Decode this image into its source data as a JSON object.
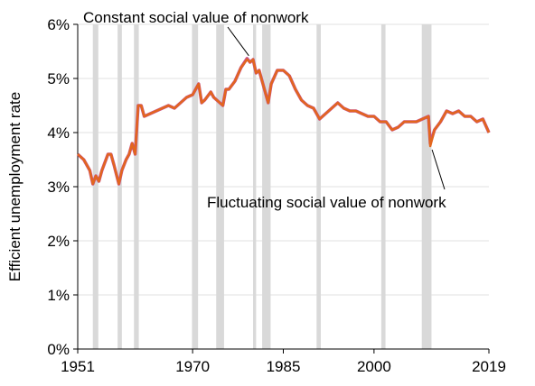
{
  "chart_data": {
    "type": "line",
    "y_label": "Efficient unemployment rate",
    "x": [
      1951,
      1952,
      1953,
      1953.5,
      1954,
      1954.5,
      1955,
      1956,
      1956.5,
      1957,
      1957.8,
      1958.3,
      1959,
      1959.5,
      1960,
      1960.5,
      1961,
      1961.5,
      1962,
      1963,
      1964,
      1965,
      1966,
      1967,
      1968,
      1969,
      1970,
      1970.5,
      1971,
      1971.5,
      1972,
      1973,
      1973.5,
      1974,
      1975,
      1975.5,
      1976,
      1977,
      1978,
      1979,
      1979.5,
      1980,
      1980.5,
      1981,
      1981.5,
      1982,
      1982.5,
      1983,
      1984,
      1985,
      1986,
      1987,
      1988,
      1989,
      1990,
      1991,
      1992,
      1993,
      1994,
      1995,
      1996,
      1997,
      1998,
      1999,
      2000,
      2001,
      2002,
      2003,
      2004,
      2005,
      2006,
      2007,
      2008,
      2009,
      2009.3,
      2010,
      2011,
      2012,
      2013,
      2014,
      2015,
      2016,
      2017,
      2018,
      2019
    ],
    "series": [
      {
        "name": "Constant social value of nonwork",
        "color": "#c8508a",
        "values": [
          3.6,
          3.5,
          3.3,
          3.05,
          3.2,
          3.1,
          3.3,
          3.6,
          3.6,
          3.4,
          3.05,
          3.3,
          3.5,
          3.6,
          3.8,
          3.6,
          4.5,
          4.5,
          4.3,
          4.35,
          4.4,
          4.45,
          4.5,
          4.45,
          4.55,
          4.65,
          4.7,
          4.8,
          4.9,
          4.55,
          4.6,
          4.75,
          4.65,
          4.6,
          4.5,
          4.8,
          4.8,
          4.95,
          5.2,
          5.37,
          5.3,
          5.35,
          5.1,
          5.15,
          4.95,
          4.75,
          4.55,
          4.9,
          5.15,
          5.15,
          5.05,
          4.8,
          4.6,
          4.5,
          4.45,
          4.25,
          4.35,
          4.45,
          4.55,
          4.45,
          4.4,
          4.4,
          4.35,
          4.3,
          4.3,
          4.2,
          4.2,
          4.05,
          4.1,
          4.2,
          4.2,
          4.2,
          4.25,
          4.3,
          3.8,
          4.05,
          4.2,
          4.4,
          4.35,
          4.4,
          4.3,
          4.3,
          4.2,
          4.25,
          4.0
        ]
      },
      {
        "name": "Fluctuating social value of nonwork",
        "color": "#e2661e",
        "values": [
          3.6,
          3.5,
          3.3,
          3.05,
          3.2,
          3.1,
          3.3,
          3.6,
          3.6,
          3.4,
          3.05,
          3.3,
          3.5,
          3.6,
          3.8,
          3.6,
          4.5,
          4.5,
          4.3,
          4.35,
          4.4,
          4.45,
          4.5,
          4.45,
          4.55,
          4.65,
          4.7,
          4.8,
          4.9,
          4.55,
          4.6,
          4.75,
          4.65,
          4.6,
          4.5,
          4.8,
          4.8,
          4.95,
          5.2,
          5.35,
          5.3,
          5.35,
          5.1,
          5.15,
          4.95,
          4.75,
          4.55,
          4.9,
          5.15,
          5.15,
          5.05,
          4.8,
          4.6,
          4.5,
          4.45,
          4.25,
          4.35,
          4.45,
          4.55,
          4.45,
          4.4,
          4.4,
          4.35,
          4.3,
          4.3,
          4.2,
          4.2,
          4.05,
          4.1,
          4.2,
          4.2,
          4.2,
          4.25,
          4.3,
          3.75,
          4.05,
          4.2,
          4.4,
          4.35,
          4.4,
          4.3,
          4.3,
          4.2,
          4.25,
          4.0
        ]
      }
    ],
    "recessions": [
      [
        1953.5,
        1954.4
      ],
      [
        1957.6,
        1958.3
      ],
      [
        1960.3,
        1961.1
      ],
      [
        1969.9,
        1970.9
      ],
      [
        1973.9,
        1975.2
      ],
      [
        1980.0,
        1980.5
      ],
      [
        1981.5,
        1982.9
      ],
      [
        1990.5,
        1991.2
      ],
      [
        2001.2,
        2001.9
      ],
      [
        2007.9,
        2009.5
      ]
    ],
    "recession_color": "#d9d9d9",
    "xlim": [
      1951,
      2019
    ],
    "xticks": [
      1951,
      1970,
      1985,
      2000,
      2019
    ],
    "ylim": [
      0,
      6
    ],
    "yticks": [
      {
        "value": 0,
        "label": "0%"
      },
      {
        "value": 1,
        "label": "1%"
      },
      {
        "value": 2,
        "label": "2%"
      },
      {
        "value": 3,
        "label": "3%"
      },
      {
        "value": 4,
        "label": "4%"
      },
      {
        "value": 5,
        "label": "5%"
      },
      {
        "value": 6,
        "label": "6%"
      }
    ],
    "grid": true
  }
}
